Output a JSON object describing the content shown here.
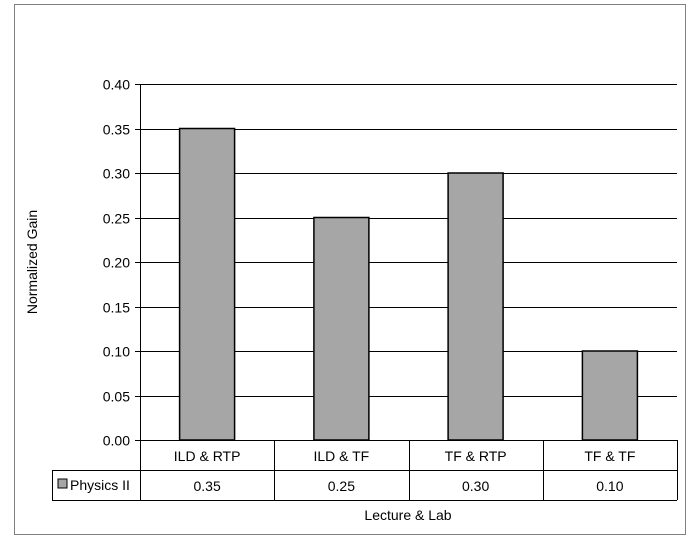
{
  "chart_data": {
    "type": "bar",
    "title": "",
    "xlabel": "Lecture & Lab",
    "ylabel": "Normalized Gain",
    "categories": [
      "ILD & RTP",
      "ILD & TF",
      "TF & RTP",
      "TF & TF"
    ],
    "series": [
      {
        "name": "Physics II",
        "values": [
          0.35,
          0.25,
          0.3,
          0.1
        ],
        "value_labels": [
          "0.35",
          "0.25",
          "0.30",
          "0.10"
        ],
        "color": "#a6a6a6"
      }
    ],
    "ylim": [
      0,
      0.4
    ],
    "yticks": [
      0.0,
      0.05,
      0.1,
      0.15,
      0.2,
      0.25,
      0.3,
      0.35,
      0.4
    ],
    "ytick_labels": [
      "0.00",
      "0.05",
      "0.10",
      "0.15",
      "0.20",
      "0.25",
      "0.30",
      "0.35",
      "0.40"
    ],
    "grid": true,
    "legend": "data-table",
    "data_table": true
  }
}
